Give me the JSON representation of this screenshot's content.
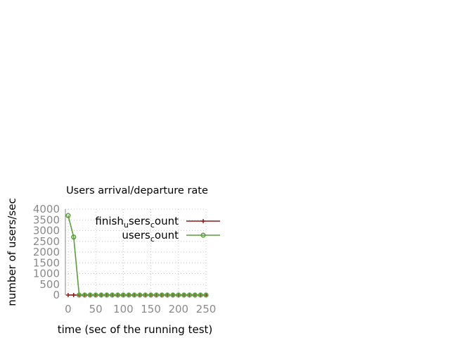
{
  "chart_data": {
    "type": "line",
    "title": "Users arrival/departure rate",
    "xlabel": "time (sec of the running test)",
    "ylabel": "number of users/sec",
    "xlim": [
      -5,
      250
    ],
    "ylim": [
      0,
      4000
    ],
    "x_ticks": [
      0,
      50,
      100,
      150,
      200,
      250
    ],
    "y_ticks": [
      0,
      500,
      1000,
      1500,
      2000,
      2500,
      3000,
      3500,
      4000
    ],
    "grid": true,
    "legend_position": "top-right",
    "x": [
      0,
      10,
      20,
      30,
      40,
      50,
      60,
      70,
      80,
      90,
      100,
      110,
      120,
      130,
      140,
      150,
      160,
      170,
      180,
      190,
      200,
      210,
      220,
      230,
      240,
      250
    ],
    "series": [
      {
        "legend": {
          "base": "finish",
          "sub1": "u",
          "mid": "sers",
          "sub2": "c",
          "tail": "ount"
        },
        "color": "#8b1a1a",
        "marker": "plus",
        "values": [
          0,
          0,
          0,
          0,
          0,
          0,
          0,
          0,
          0,
          0,
          0,
          0,
          0,
          0,
          0,
          0,
          0,
          0,
          0,
          0,
          0,
          0,
          0,
          0,
          0,
          0
        ]
      },
      {
        "legend": {
          "base": "users",
          "sub1": "c",
          "mid": "ount",
          "sub2": "",
          "tail": ""
        },
        "color": "#5a9e3a",
        "marker": "circle",
        "values": [
          3700,
          2700,
          0,
          0,
          0,
          0,
          0,
          0,
          0,
          0,
          0,
          0,
          0,
          0,
          0,
          0,
          0,
          0,
          0,
          0,
          0,
          0,
          0,
          0,
          0,
          0
        ]
      }
    ]
  }
}
